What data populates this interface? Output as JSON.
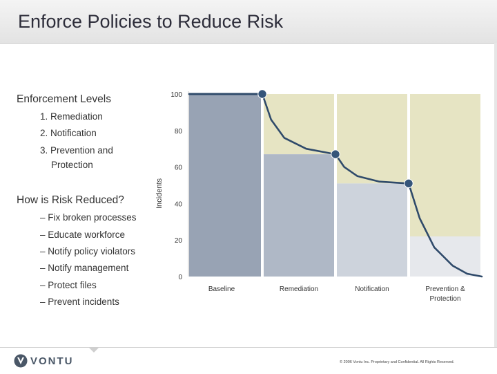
{
  "slide": {
    "title": "Enforce Policies to Reduce Risk",
    "enforcement_heading": "Enforcement Levels",
    "enforcement_items": [
      "1. Remediation",
      "2. Notification",
      "3. Prevention and",
      "Protection"
    ],
    "risk_heading": "How is Risk Reduced?",
    "risk_items": [
      "– Fix broken processes",
      "– Educate workforce",
      "– Notify policy violators",
      "– Notify management",
      "– Protect files",
      "– Prevent incidents"
    ],
    "logo_text": "VONTU",
    "copyright": "© 2006 Vontu Inc.  Proprietary and Confidential.  All Rights Reserved."
  },
  "colors": {
    "upper_fill": "#e6e4c3",
    "bar_fills": [
      "#98a3b4",
      "#afb8c6",
      "#cdd3dc",
      "#e6e8ec"
    ],
    "curve": "#2f4a6a",
    "marker": "#35557a",
    "logo": "#4a5767"
  },
  "chart_data": {
    "type": "area",
    "ylabel": "Incidents",
    "xlabel": "",
    "ylim": [
      0,
      100
    ],
    "yticks": [
      0,
      20,
      40,
      60,
      80,
      100
    ],
    "categories": [
      "Baseline",
      "Remediation",
      "Notification",
      "Prevention & Protection"
    ],
    "category_labels": [
      [
        "Baseline"
      ],
      [
        "Remediation"
      ],
      [
        "Notification"
      ],
      [
        "Prevention &",
        "Protection"
      ]
    ],
    "level_values": [
      100,
      67,
      51,
      0
    ],
    "markers": [
      {
        "x": 1.0,
        "y": 100
      },
      {
        "x": 2.0,
        "y": 67
      },
      {
        "x": 3.0,
        "y": 51
      }
    ],
    "curve": [
      {
        "x": 0.0,
        "y": 100
      },
      {
        "x": 1.0,
        "y": 100
      },
      {
        "x": 1.12,
        "y": 86
      },
      {
        "x": 1.3,
        "y": 76
      },
      {
        "x": 1.6,
        "y": 70
      },
      {
        "x": 2.0,
        "y": 67
      },
      {
        "x": 2.12,
        "y": 60
      },
      {
        "x": 2.3,
        "y": 55
      },
      {
        "x": 2.6,
        "y": 52
      },
      {
        "x": 3.0,
        "y": 51
      },
      {
        "x": 3.15,
        "y": 32
      },
      {
        "x": 3.35,
        "y": 16
      },
      {
        "x": 3.6,
        "y": 6
      },
      {
        "x": 3.8,
        "y": 1.5
      },
      {
        "x": 4.0,
        "y": 0
      }
    ]
  }
}
